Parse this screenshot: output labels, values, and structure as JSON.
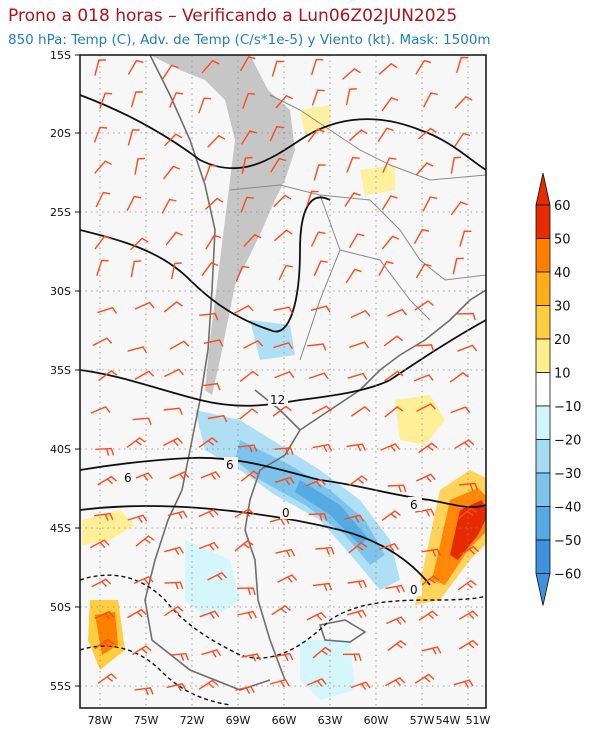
{
  "header": {
    "title": "Prono a 018 horas – Verificando a Lun06Z02JUN2025",
    "subtitle": "850 hPa: Temp (C), Adv. de Temp (C/s*1e-5) y Viento (kt). Mask: 1500m"
  },
  "map": {
    "lat_labels": [
      "15S",
      "20S",
      "25S",
      "30S",
      "35S",
      "40S",
      "45S",
      "50S",
      "55S"
    ],
    "lon_labels": [
      "78W",
      "75W",
      "72W",
      "69W",
      "66W",
      "63W",
      "60W",
      "57W",
      "54W",
      "51W"
    ],
    "contour_labels": [
      "12",
      "6",
      "6",
      "0",
      "6",
      "0"
    ],
    "mask_color": "#c6c6c6",
    "wind_barb_color": "#ff4a1c"
  },
  "colorbar": {
    "labels": [
      "60",
      "50",
      "40",
      "30",
      "20",
      "10",
      "−10",
      "−20",
      "−30",
      "−40",
      "−50",
      "−60"
    ],
    "colors": [
      "#e62b00",
      "#ff7f00",
      "#ffae1a",
      "#ffce40",
      "#ffee8c",
      "#fffbd2",
      "#ffffff",
      "#d0f5fa",
      "#a6dcf3",
      "#7cc4ec",
      "#55aae4",
      "#3c92dc"
    ]
  }
}
